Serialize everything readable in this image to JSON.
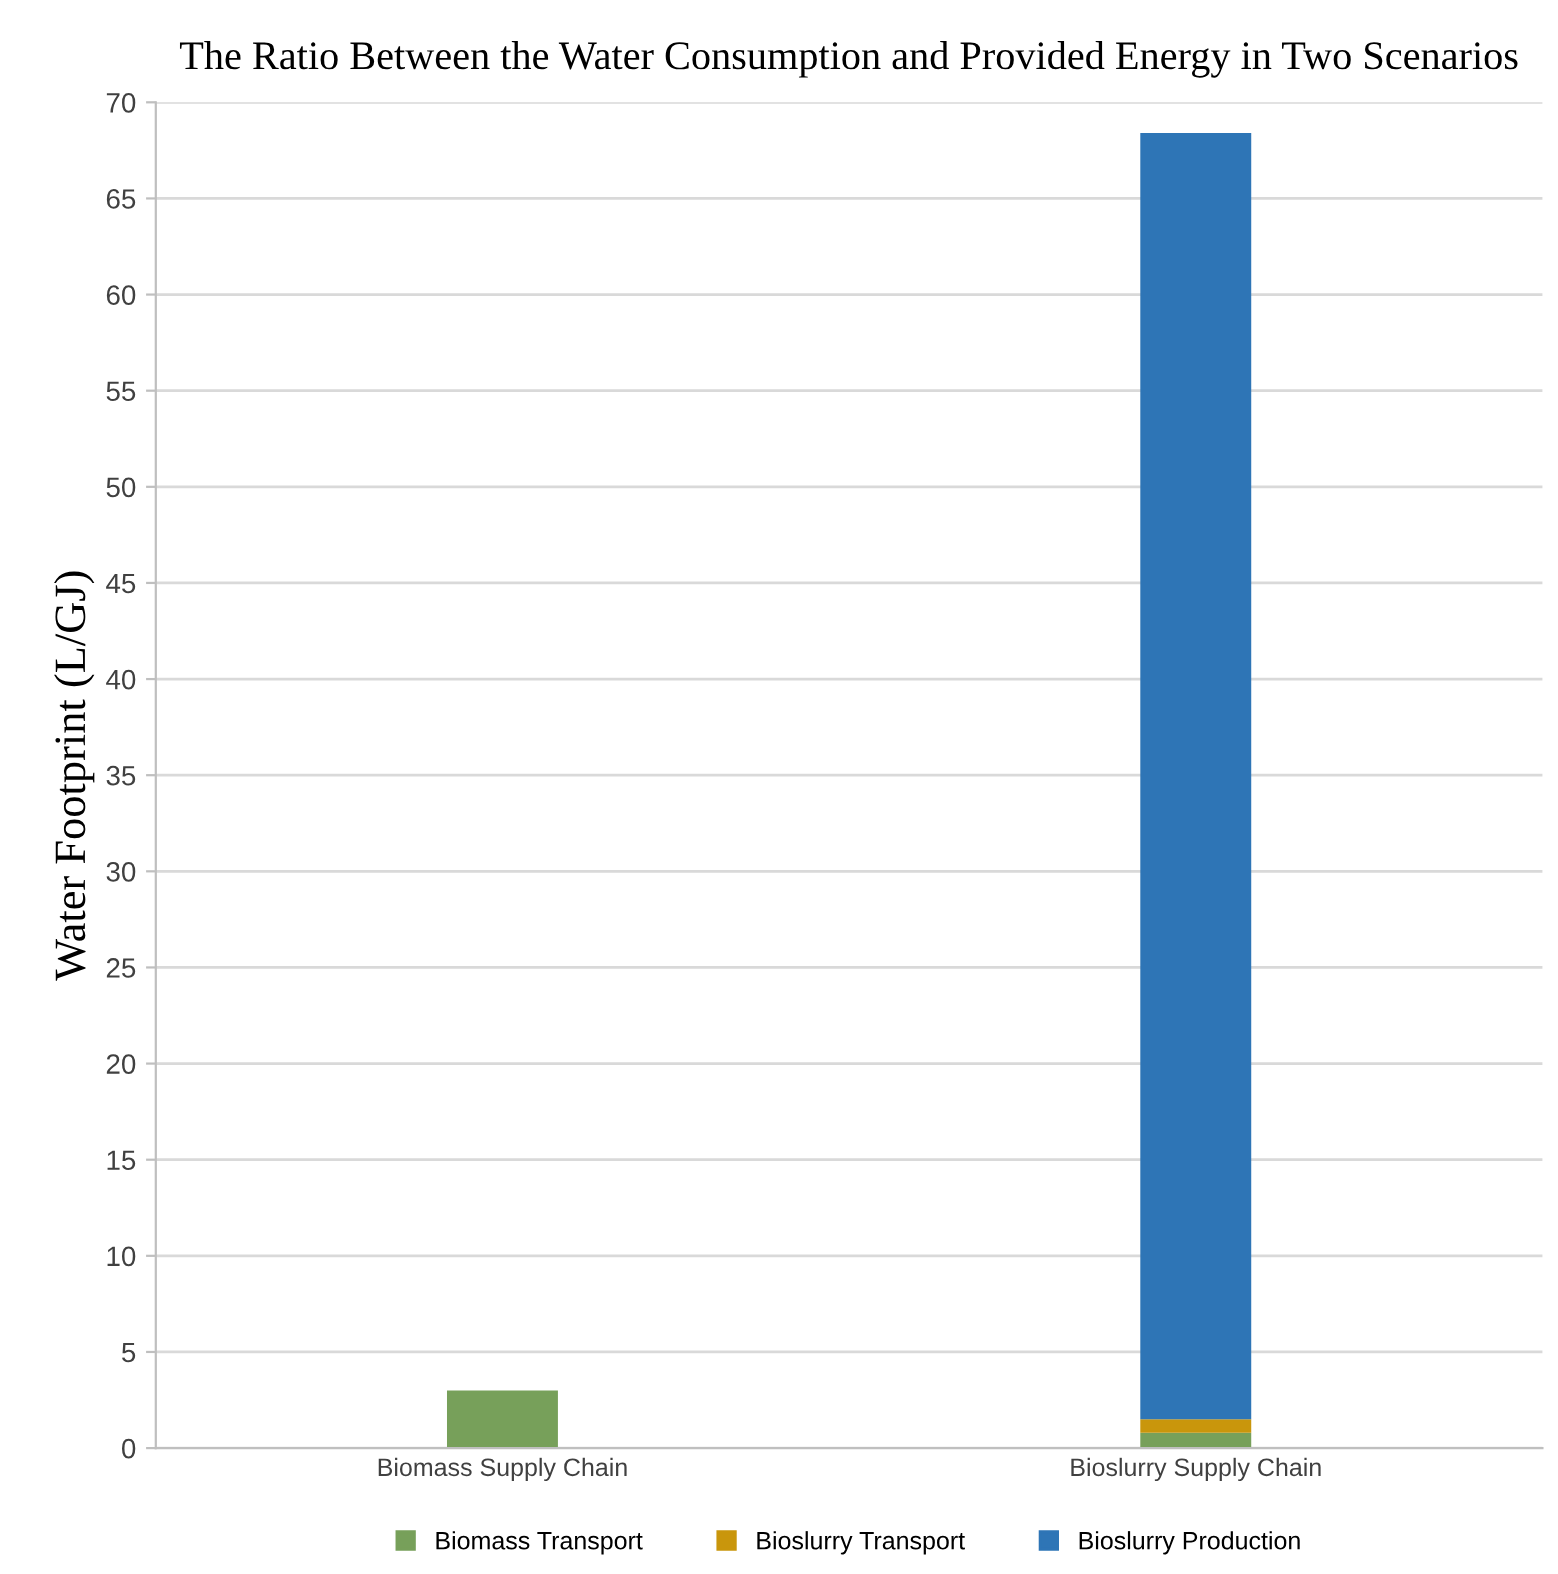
{
  "chart_data": {
    "type": "bar",
    "stacked": true,
    "title": "The Ratio Between the Water Consumption and Provided Energy in Two Scenarios",
    "ylabel": "Water Footprint (L/GJ)",
    "categories": [
      "Biomass Supply Chain",
      "Bioslurry Supply Chain"
    ],
    "series": [
      {
        "name": "Biomass Transport",
        "color": "#77a05a",
        "values": [
          3.0,
          0.8
        ]
      },
      {
        "name": "Bioslurry Transport",
        "color": "#c9960c",
        "values": [
          0,
          0.7
        ]
      },
      {
        "name": "Bioslurry Production",
        "color": "#2e75b6",
        "values": [
          0,
          66.9
        ]
      }
    ],
    "ylim": [
      0,
      70
    ],
    "yticks": [
      0,
      5,
      10,
      15,
      20,
      25,
      30,
      35,
      40,
      45,
      50,
      55,
      60,
      65,
      70
    ],
    "grid": "y",
    "legend": "bottom"
  }
}
